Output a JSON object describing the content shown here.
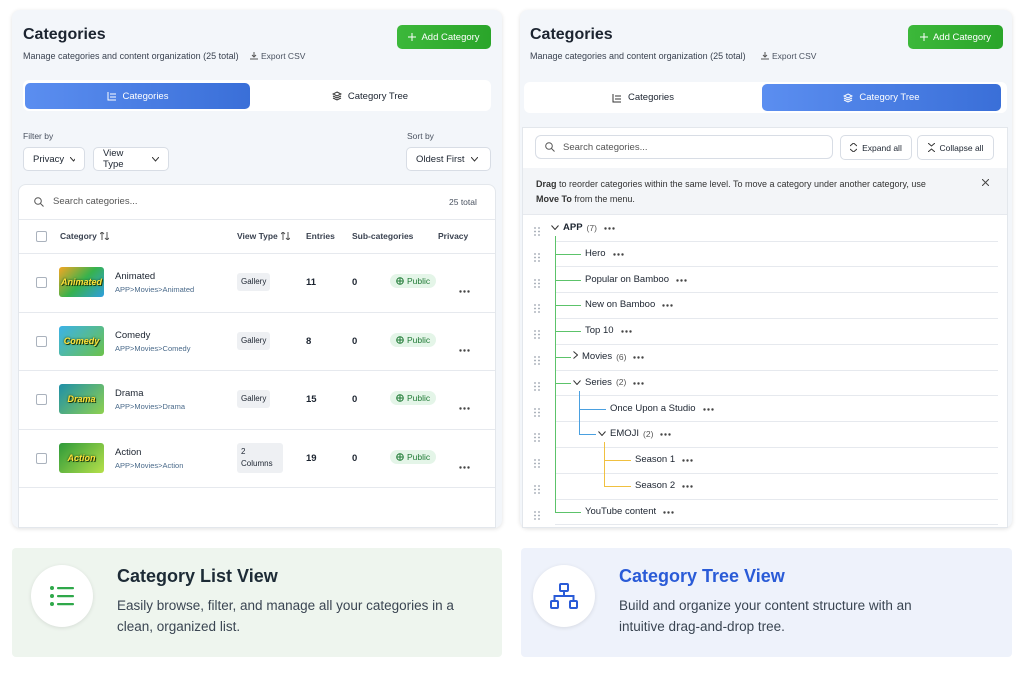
{
  "list_panel": {
    "title": "Categories",
    "subtitle": "Manage categories and content organization (25 total)",
    "export": "Export CSV",
    "add_button": "Add Category",
    "tabs": [
      "Categories",
      "Category Tree"
    ],
    "filter_label": "Filter by",
    "filters": [
      "Privacy",
      "View Type"
    ],
    "sort_label": "Sort by",
    "sort": "Oldest First",
    "search_placeholder": "Search categories...",
    "total": "25 total",
    "columns": [
      "Category",
      "View Type",
      "Entries",
      "Sub-categories",
      "Privacy"
    ],
    "rows": [
      {
        "thumb": "Animated",
        "name": "Animated",
        "path": "APP>Movies>Animated",
        "view_type": "Gallery",
        "entries": "11",
        "sub": "0",
        "privacy": "Public"
      },
      {
        "thumb": "Comedy",
        "name": "Comedy",
        "path": "APP>Movies>Comedy",
        "view_type": "Gallery",
        "entries": "8",
        "sub": "0",
        "privacy": "Public"
      },
      {
        "thumb": "Drama",
        "name": "Drama",
        "path": "APP>Movies>Drama",
        "view_type": "Gallery",
        "entries": "15",
        "sub": "0",
        "privacy": "Public"
      },
      {
        "thumb": "Action",
        "name": "Action",
        "path": "APP>Movies>Action",
        "view_type": "2 Columns",
        "entries": "19",
        "sub": "0",
        "privacy": "Public"
      }
    ]
  },
  "tree_panel": {
    "title": "Categories",
    "subtitle": "Manage categories and content organization (25 total)",
    "export": "Export CSV",
    "add_button": "Add Category",
    "tabs": [
      "Categories",
      "Category Tree"
    ],
    "search_placeholder": "Search categories...",
    "expand_all": "Expand all",
    "collapse_all": "Collapse all",
    "banner": [
      "Drag",
      "to reorder categories within the same level. To move a category under another category, use",
      "Move To",
      "from the menu."
    ],
    "tree": [
      {
        "label": "APP",
        "count": "(7)",
        "children": [
          {
            "label": "Hero"
          },
          {
            "label": "Popular on Bamboo"
          },
          {
            "label": "New on Bamboo"
          },
          {
            "label": "Top 10"
          },
          {
            "label": "Movies",
            "count": "(6)"
          },
          {
            "label": "Series",
            "count": "(2)",
            "children": [
              {
                "label": "Once Upon a Studio"
              },
              {
                "label": "EMOJI",
                "count": "(2)",
                "children": [
                  {
                    "label": "Season 1"
                  },
                  {
                    "label": "Season 2"
                  }
                ]
              }
            ]
          },
          {
            "label": "YouTube content"
          }
        ]
      }
    ]
  },
  "features": [
    {
      "title": "Category List View",
      "text": "Easily browse, filter, and manage all your categories in a clean, organized list."
    },
    {
      "title": "Category Tree View",
      "text": "Build and organize your content structure with an intuitive drag-and-drop tree."
    }
  ]
}
